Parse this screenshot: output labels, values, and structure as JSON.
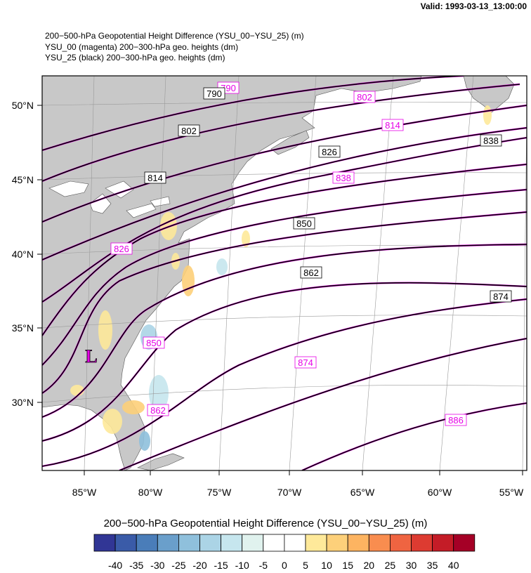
{
  "valid_label": "Valid: 1993-03-13_13:00:00",
  "titles": {
    "line1": "200−500-hPa Geopotential Height Difference (YSU_00−YSU_25)   (m)",
    "line2": "YSU_00 (magenta) 200−300-hPa geo. heights   (dm)",
    "line3": "YSU_25 (black) 200−300-hPa geo. heights   (dm)"
  },
  "map": {
    "lon_ticks": [
      "85°W",
      "80°W",
      "75°W",
      "70°W",
      "65°W",
      "60°W",
      "55°W"
    ],
    "lat_ticks": [
      "50°N",
      "45°N",
      "40°N",
      "35°N",
      "30°N"
    ],
    "land_color": "#c8c8c8",
    "ocean_color": "#ffffff",
    "low_marker": "L",
    "low_color": "#e600e6",
    "contour_black": "#000000",
    "contour_magenta": "#e600e6",
    "height_labels_black": [
      "790",
      "802",
      "814",
      "826",
      "838",
      "850",
      "862",
      "874"
    ],
    "height_labels_magenta": [
      "790",
      "802",
      "814",
      "826",
      "838",
      "850",
      "862",
      "874",
      "886"
    ]
  },
  "colorbar": {
    "title": "200−500-hPa Geopotential Height Difference (YSU_00−YSU_25)  (m)",
    "tick_labels": [
      "-40",
      "-35",
      "-30",
      "-25",
      "-20",
      "-15",
      "-10",
      "-5",
      "0",
      "5",
      "10",
      "15",
      "20",
      "25",
      "30",
      "35",
      "40"
    ],
    "colors": [
      "#313695",
      "#3a5ba8",
      "#4a7db9",
      "#6a9fcb",
      "#8fc0dc",
      "#abd4e6",
      "#c6e6ee",
      "#e0f2ee",
      "#ffffff",
      "#ffffff",
      "#fee99a",
      "#fdd07a",
      "#fdb461",
      "#f98d4f",
      "#ef6441",
      "#dd3b31",
      "#c41c27",
      "#a50026"
    ]
  }
}
